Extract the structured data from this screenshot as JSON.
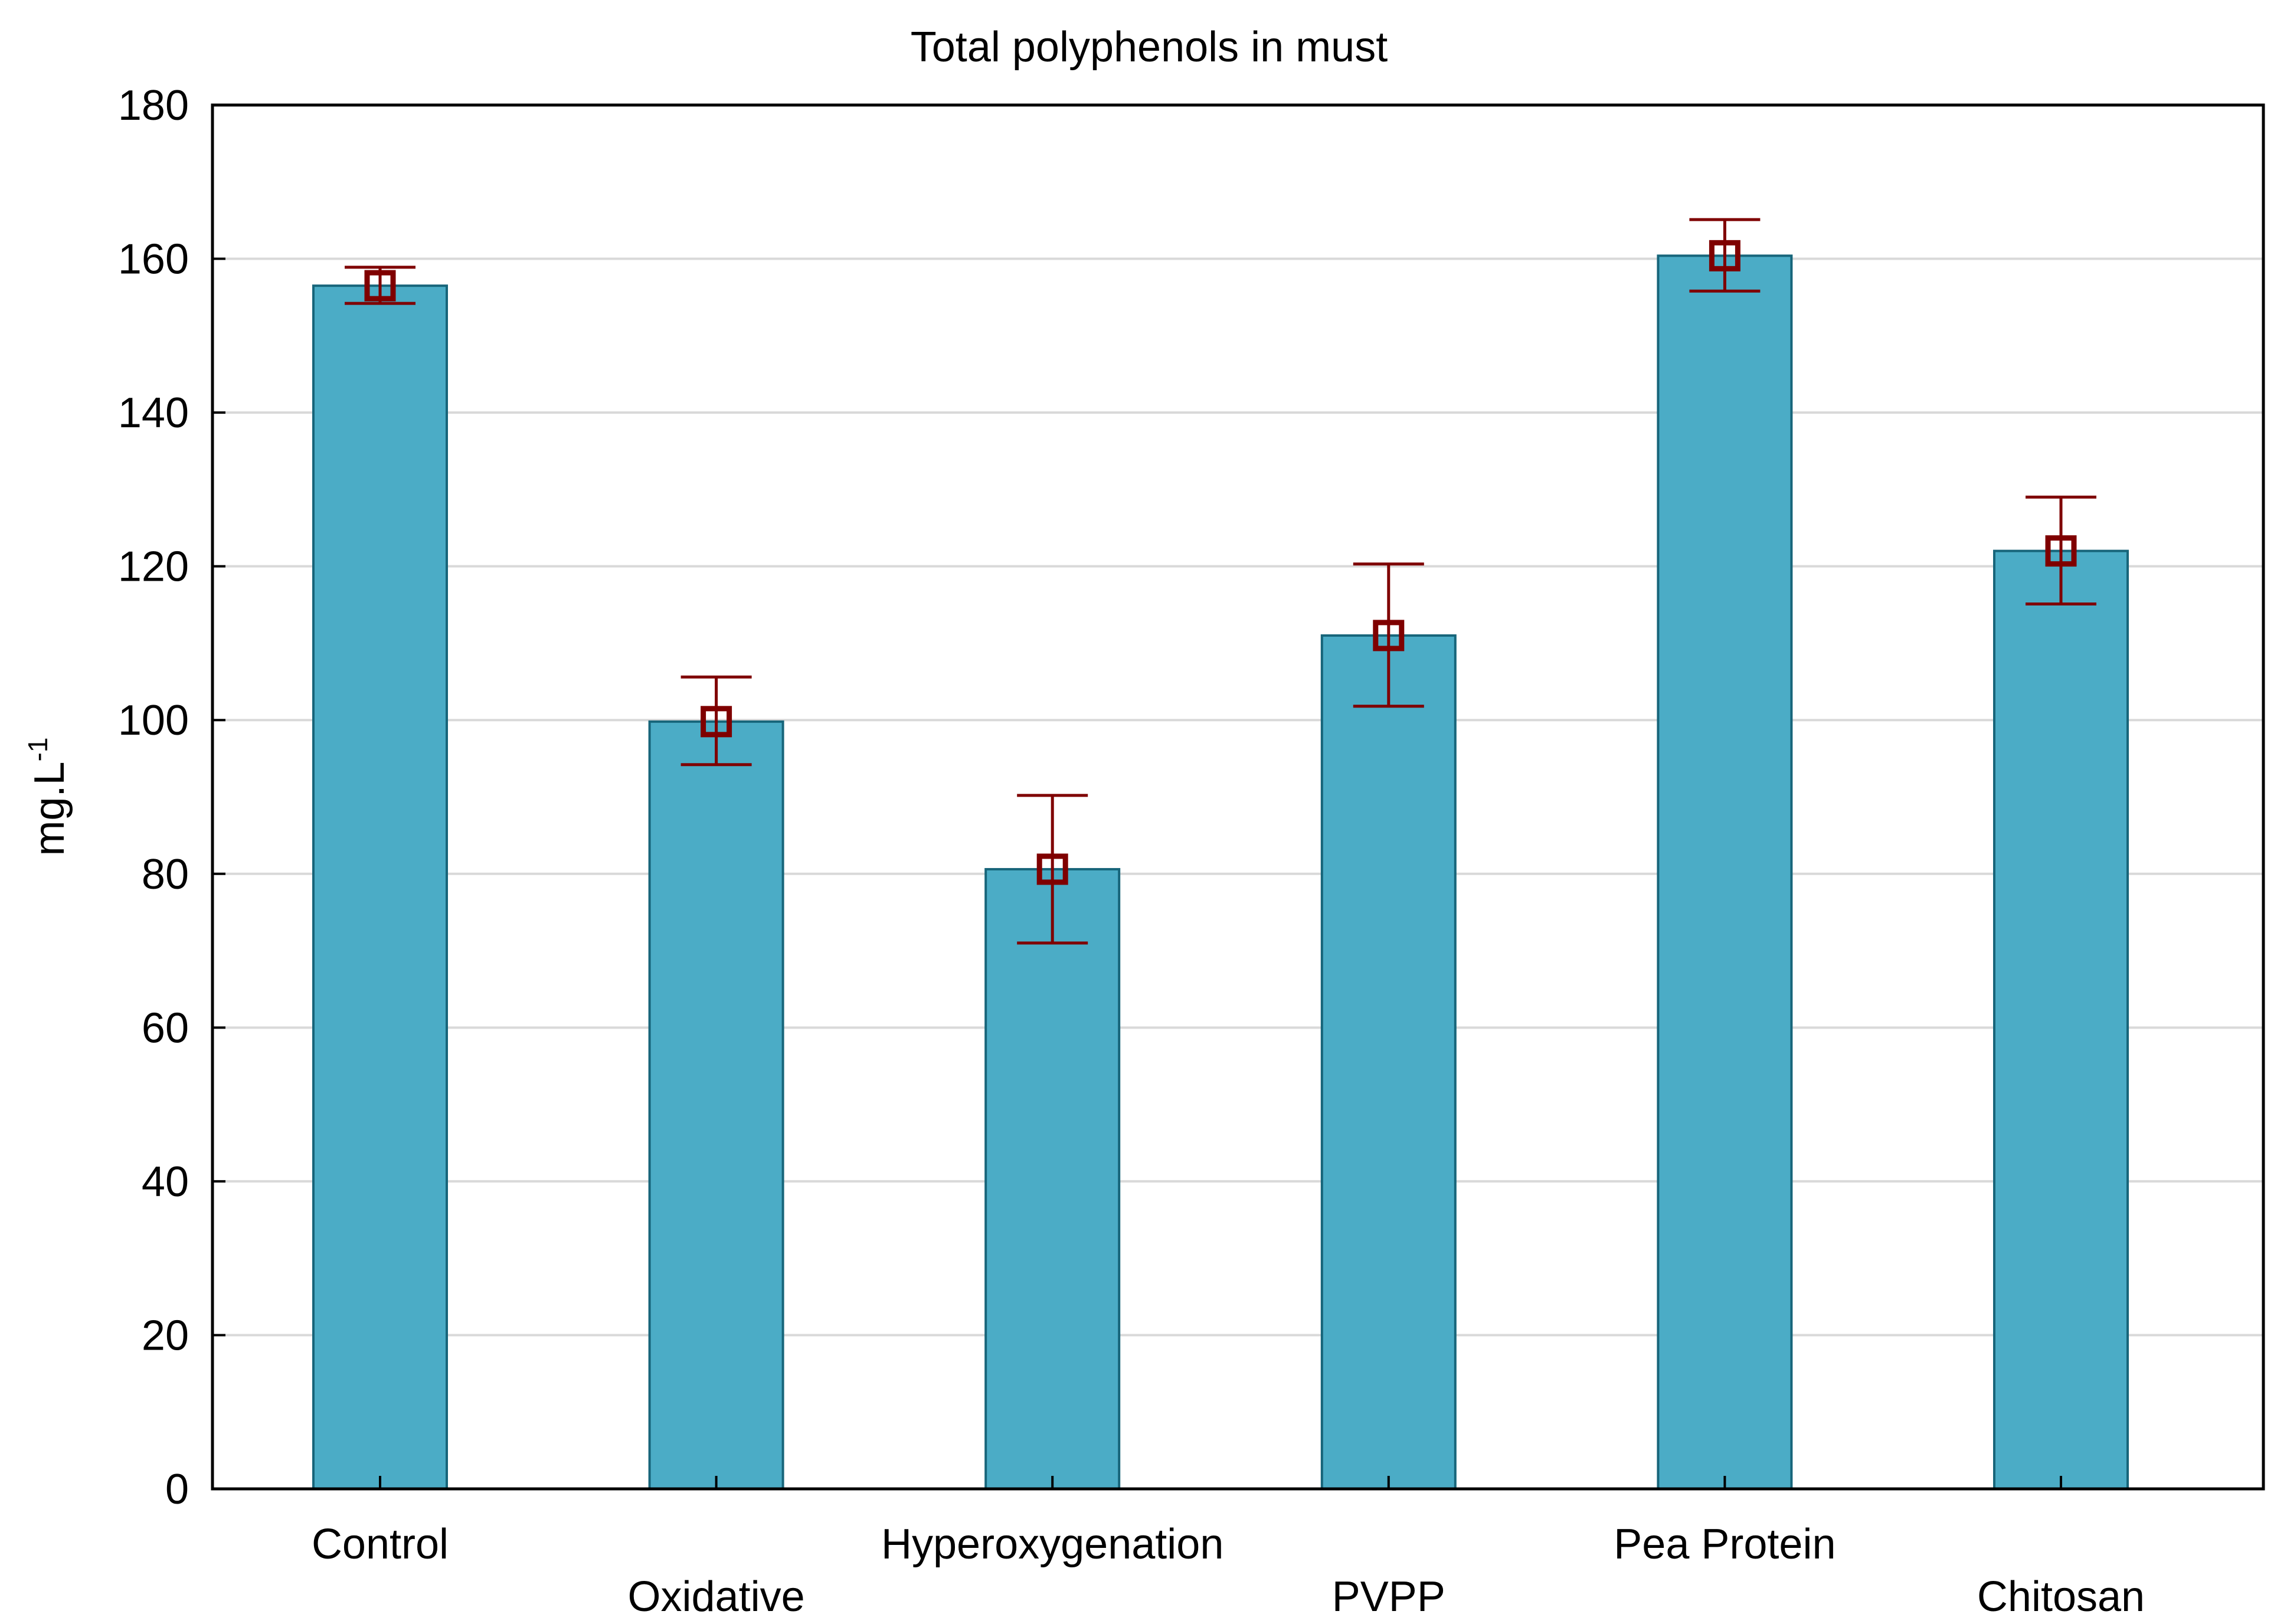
{
  "chart_data": {
    "type": "bar",
    "title": "Total polyphenols in must",
    "xlabel": "",
    "ylabel": "mg.L",
    "ylabel_superscript": "-1",
    "ylim": [
      0,
      180
    ],
    "yticks": [
      "0",
      "20",
      "40",
      "60",
      "80",
      "100",
      "120",
      "140",
      "160",
      "180"
    ],
    "grid": true,
    "categories": [
      "Control",
      "Oxidative",
      "Hyperoxygenation",
      "PVPP",
      "Pea Protein",
      "Chitosan"
    ],
    "values": [
      156.5,
      99.8,
      80.6,
      111.0,
      160.4,
      122.0
    ],
    "error_low": [
      154.2,
      94.2,
      71.0,
      101.8,
      155.8,
      115.1
    ],
    "error_high": [
      158.9,
      105.6,
      90.2,
      120.3,
      165.1,
      129.0
    ],
    "bar_color": "#4bacc6",
    "bar_edge_color": "#17657a",
    "error_color": "#7f0000",
    "grid_color": "#d9d9d9"
  }
}
